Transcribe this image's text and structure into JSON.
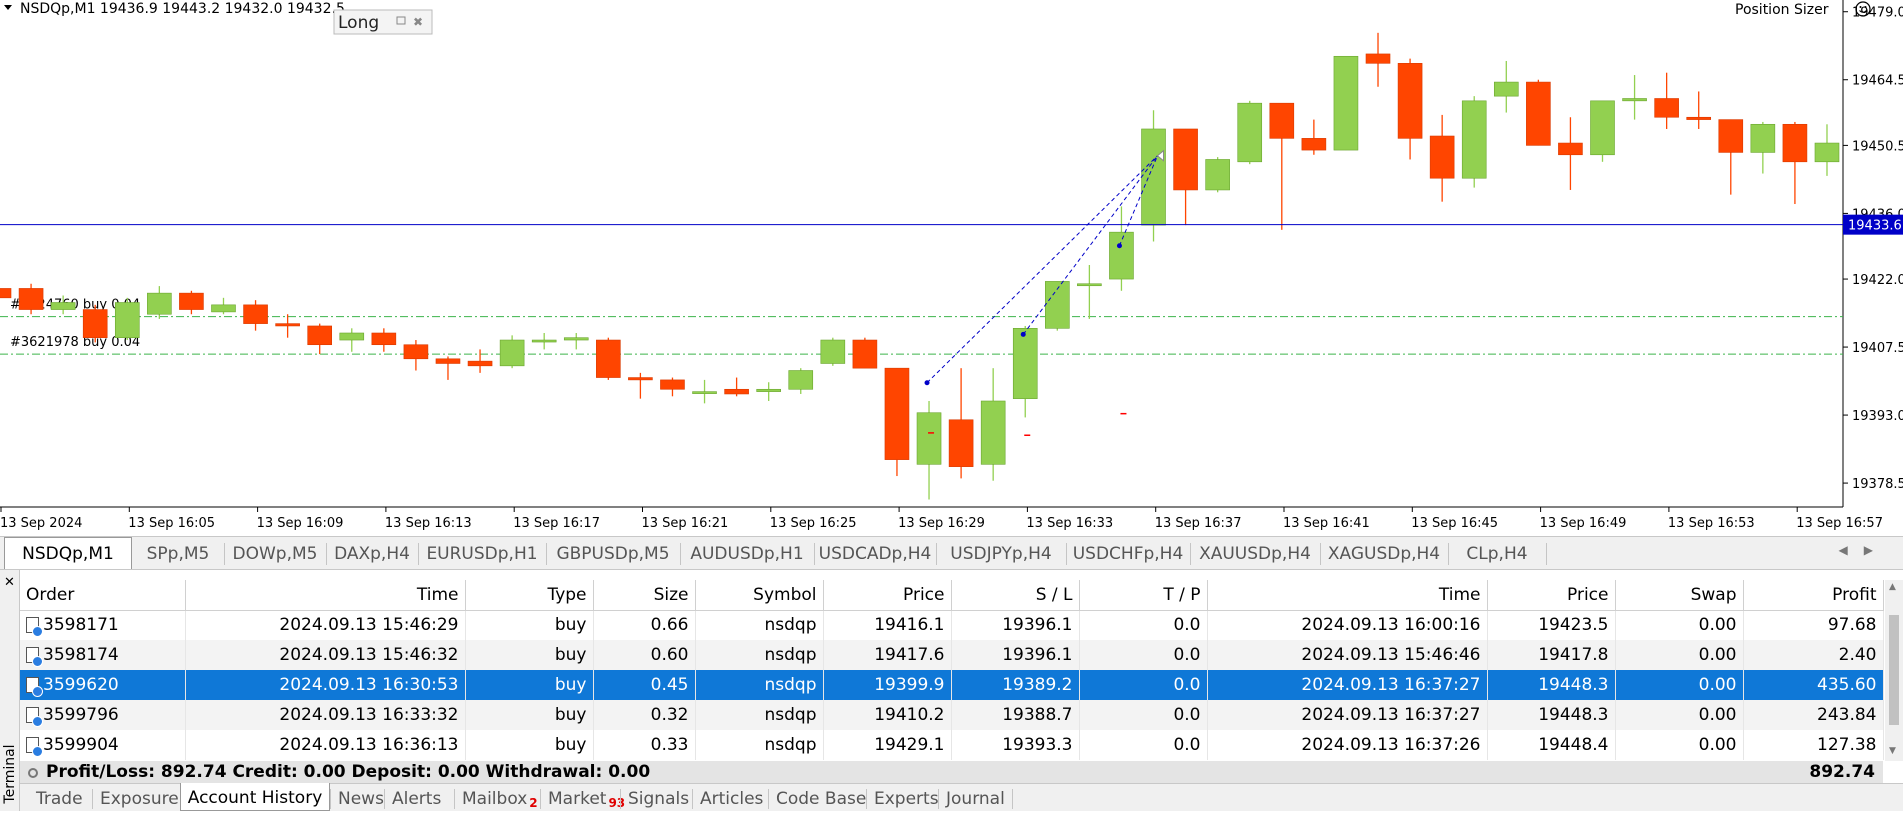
{
  "chart": {
    "header": "NSDQp,M1  19436.9 19443.2 19432.0 19432.5",
    "header_arrow_icon": "triangle-down-icon",
    "long_label": "Long",
    "position_sizer_label": "Position Sizer",
    "position_sizer_icon": "smiley-icon",
    "current_price": "19433.6",
    "order_lines": [
      {
        "label": "#3624760 buy 0.04",
        "price": 19414.0
      },
      {
        "label": "#3621978 buy 0.04",
        "price": 19406.0
      }
    ],
    "colors": {
      "bull": "#92d050",
      "bear": "#ff4500",
      "price_line": "#0000c8",
      "order_line": "#3cb44b",
      "trade_line": "#0000c8",
      "price_tag": "#0000c8"
    }
  },
  "chart_data": {
    "type": "candlestick",
    "symbol": "NSDQp",
    "timeframe": "M1",
    "y_ticks": [
      "19479.0",
      "19464.5",
      "19450.5",
      "19436.0",
      "19422.0",
      "19407.5",
      "19393.0",
      "19378.5"
    ],
    "ylim": [
      19373.4,
      19481.5
    ],
    "x_ticks": [
      "13 Sep 2024",
      "13 Sep 16:05",
      "13 Sep 16:09",
      "13 Sep 16:13",
      "13 Sep 16:17",
      "13 Sep 16:21",
      "13 Sep 16:25",
      "13 Sep 16:29",
      "13 Sep 16:33",
      "13 Sep 16:37",
      "13 Sep 16:41",
      "13 Sep 16:45",
      "13 Sep 16:49",
      "13 Sep 16:53",
      "13 Sep 16:57"
    ],
    "candles": [
      {
        "o": 19420.0,
        "h": 19423.0,
        "l": 19417.0,
        "c": 19418.0
      },
      {
        "o": 19420.0,
        "h": 19421.0,
        "l": 19414.5,
        "c": 19415.5
      },
      {
        "o": 19415.5,
        "h": 19418.5,
        "l": 19414.5,
        "c": 19417.0
      },
      {
        "o": 19415.5,
        "h": 19416.5,
        "l": 19408.5,
        "c": 19409.5
      },
      {
        "o": 19409.5,
        "h": 19418.0,
        "l": 19409.0,
        "c": 19417.0
      },
      {
        "o": 19414.5,
        "h": 19420.5,
        "l": 19413.5,
        "c": 19419.0
      },
      {
        "o": 19419.0,
        "h": 19419.5,
        "l": 19414.5,
        "c": 19415.5
      },
      {
        "o": 19415.0,
        "h": 19418.0,
        "l": 19414.5,
        "c": 19416.5
      },
      {
        "o": 19416.5,
        "h": 19417.5,
        "l": 19411.0,
        "c": 19412.5
      },
      {
        "o": 19412.5,
        "h": 19414.5,
        "l": 19409.5,
        "c": 19412.0
      },
      {
        "o": 19412.0,
        "h": 19412.5,
        "l": 19406.0,
        "c": 19408.0
      },
      {
        "o": 19409.0,
        "h": 19411.5,
        "l": 19406.5,
        "c": 19410.5
      },
      {
        "o": 19410.5,
        "h": 19411.5,
        "l": 19406.5,
        "c": 19408.0
      },
      {
        "o": 19408.0,
        "h": 19409.0,
        "l": 19402.5,
        "c": 19405.0
      },
      {
        "o": 19405.0,
        "h": 19405.5,
        "l": 19400.5,
        "c": 19404.0
      },
      {
        "o": 19404.5,
        "h": 19407.0,
        "l": 19402.0,
        "c": 19403.5
      },
      {
        "o": 19403.5,
        "h": 19410.0,
        "l": 19403.0,
        "c": 19409.0
      },
      {
        "o": 19409.0,
        "h": 19410.5,
        "l": 19407.0,
        "c": 19409.0
      },
      {
        "o": 19409.0,
        "h": 19410.5,
        "l": 19407.0,
        "c": 19409.5
      },
      {
        "o": 19409.0,
        "h": 19409.5,
        "l": 19400.5,
        "c": 19401.0
      },
      {
        "o": 19401.0,
        "h": 19402.0,
        "l": 19396.5,
        "c": 19400.5
      },
      {
        "o": 19400.5,
        "h": 19401.0,
        "l": 19397.0,
        "c": 19398.5
      },
      {
        "o": 19398.0,
        "h": 19400.5,
        "l": 19395.5,
        "c": 19398.0
      },
      {
        "o": 19398.5,
        "h": 19401.0,
        "l": 19397.0,
        "c": 19397.5
      },
      {
        "o": 19398.0,
        "h": 19400.0,
        "l": 19396.0,
        "c": 19398.5
      },
      {
        "o": 19398.5,
        "h": 19403.0,
        "l": 19397.5,
        "c": 19402.5
      },
      {
        "o": 19404.0,
        "h": 19409.5,
        "l": 19403.5,
        "c": 19409.0
      },
      {
        "o": 19409.0,
        "h": 19409.5,
        "l": 19403.0,
        "c": 19403.0
      },
      {
        "o": 19403.0,
        "h": 19403.0,
        "l": 19380.0,
        "c": 19383.5
      },
      {
        "o": 19382.5,
        "h": 19396.0,
        "l": 19375.0,
        "c": 19393.5
      },
      {
        "o": 19392.0,
        "h": 19403.0,
        "l": 19379.5,
        "c": 19382.0
      },
      {
        "o": 19382.5,
        "h": 19403.0,
        "l": 19379.0,
        "c": 19396.0
      },
      {
        "o": 19396.5,
        "h": 19412.0,
        "l": 19392.5,
        "c": 19411.5
      },
      {
        "o": 19411.5,
        "h": 19421.5,
        "l": 19411.0,
        "c": 19421.5
      },
      {
        "o": 19421.0,
        "h": 19425.0,
        "l": 19413.5,
        "c": 19421.0
      },
      {
        "o": 19422.0,
        "h": 19437.5,
        "l": 19419.5,
        "c": 19432.0
      },
      {
        "o": 19433.5,
        "h": 19458.0,
        "l": 19430.0,
        "c": 19454.0
      },
      {
        "o": 19454.0,
        "h": 19454.0,
        "l": 19433.5,
        "c": 19441.0
      },
      {
        "o": 19441.0,
        "h": 19448.0,
        "l": 19440.5,
        "c": 19447.5
      },
      {
        "o": 19447.0,
        "h": 19460.0,
        "l": 19446.5,
        "c": 19459.5
      },
      {
        "o": 19459.5,
        "h": 19459.5,
        "l": 19432.5,
        "c": 19452.0
      },
      {
        "o": 19452.0,
        "h": 19456.0,
        "l": 19448.5,
        "c": 19449.5
      },
      {
        "o": 19449.5,
        "h": 19469.5,
        "l": 19449.5,
        "c": 19469.5
      },
      {
        "o": 19470.0,
        "h": 19474.5,
        "l": 19463.0,
        "c": 19468.0
      },
      {
        "o": 19468.0,
        "h": 19469.0,
        "l": 19447.5,
        "c": 19452.0
      },
      {
        "o": 19452.5,
        "h": 19457.0,
        "l": 19438.5,
        "c": 19443.5
      },
      {
        "o": 19443.5,
        "h": 19461.0,
        "l": 19441.5,
        "c": 19460.0
      },
      {
        "o": 19461.0,
        "h": 19468.5,
        "l": 19457.5,
        "c": 19464.0
      },
      {
        "o": 19464.0,
        "h": 19464.5,
        "l": 19450.5,
        "c": 19450.5
      },
      {
        "o": 19451.0,
        "h": 19456.5,
        "l": 19441.0,
        "c": 19448.5
      },
      {
        "o": 19448.5,
        "h": 19460.0,
        "l": 19447.0,
        "c": 19460.0
      },
      {
        "o": 19460.0,
        "h": 19465.5,
        "l": 19456.0,
        "c": 19460.5
      },
      {
        "o": 19460.5,
        "h": 19466.0,
        "l": 19454.0,
        "c": 19456.5
      },
      {
        "o": 19456.5,
        "h": 19462.0,
        "l": 19454.0,
        "c": 19456.0
      },
      {
        "o": 19456.0,
        "h": 19456.0,
        "l": 19440.0,
        "c": 19449.0
      },
      {
        "o": 19449.0,
        "h": 19455.5,
        "l": 19444.5,
        "c": 19455.0
      },
      {
        "o": 19455.0,
        "h": 19455.5,
        "l": 19438.0,
        "c": 19447.0
      },
      {
        "o": 19447.0,
        "h": 19455.0,
        "l": 19444.0,
        "c": 19451.0
      }
    ]
  },
  "symbol_tabs": [
    "NSDQp,M1",
    "SPp,M5",
    "DOWp,M5",
    "DAXp,H4",
    "EURUSDp,H1",
    "GBPUSDp,M5",
    "AUDUSDp,H1",
    "USDCADp,H4",
    "USDJPYp,H4",
    "USDCHFp,H4",
    "XAUUSDp,H4",
    "XAGUSDp,H4",
    "CLp,H4"
  ],
  "terminal": {
    "label": "Terminal",
    "close_icon": "close-icon",
    "columns": [
      "Order",
      "Time",
      "Type",
      "Size",
      "Symbol",
      "Price",
      "S / L",
      "T / P",
      "Time",
      "Price",
      "Swap",
      "Profit"
    ],
    "rows": [
      [
        "3598171",
        "2024.09.13 15:46:29",
        "buy",
        "0.66",
        "nsdqp",
        "19416.1",
        "19396.1",
        "0.0",
        "2024.09.13 16:00:16",
        "19423.5",
        "0.00",
        "97.68"
      ],
      [
        "3598174",
        "2024.09.13 15:46:32",
        "buy",
        "0.60",
        "nsdqp",
        "19417.6",
        "19396.1",
        "0.0",
        "2024.09.13 15:46:46",
        "19417.8",
        "0.00",
        "2.40"
      ],
      [
        "3599620",
        "2024.09.13 16:30:53",
        "buy",
        "0.45",
        "nsdqp",
        "19399.9",
        "19389.2",
        "0.0",
        "2024.09.13 16:37:27",
        "19448.3",
        "0.00",
        "435.60"
      ],
      [
        "3599796",
        "2024.09.13 16:33:32",
        "buy",
        "0.32",
        "nsdqp",
        "19410.2",
        "19388.7",
        "0.0",
        "2024.09.13 16:37:27",
        "19448.3",
        "0.00",
        "243.84"
      ],
      [
        "3599904",
        "2024.09.13 16:36:13",
        "buy",
        "0.33",
        "nsdqp",
        "19429.1",
        "19393.3",
        "0.0",
        "2024.09.13 16:37:26",
        "19448.4",
        "0.00",
        "127.38"
      ]
    ],
    "selected_row": 2,
    "summary": "Profit/Loss: 892.74  Credit: 0.00  Deposit: 0.00  Withdrawal: 0.00",
    "summary_total": "892.74",
    "tabs": [
      {
        "label": "Trade"
      },
      {
        "label": "Exposure"
      },
      {
        "label": "Account History"
      },
      {
        "label": "News"
      },
      {
        "label": "Alerts"
      },
      {
        "label": "Mailbox",
        "badge": "2"
      },
      {
        "label": "Market",
        "badge": "93"
      },
      {
        "label": "Signals"
      },
      {
        "label": "Articles"
      },
      {
        "label": "Code Base"
      },
      {
        "label": "Experts"
      },
      {
        "label": "Journal"
      }
    ],
    "active_tab": "Account History"
  }
}
